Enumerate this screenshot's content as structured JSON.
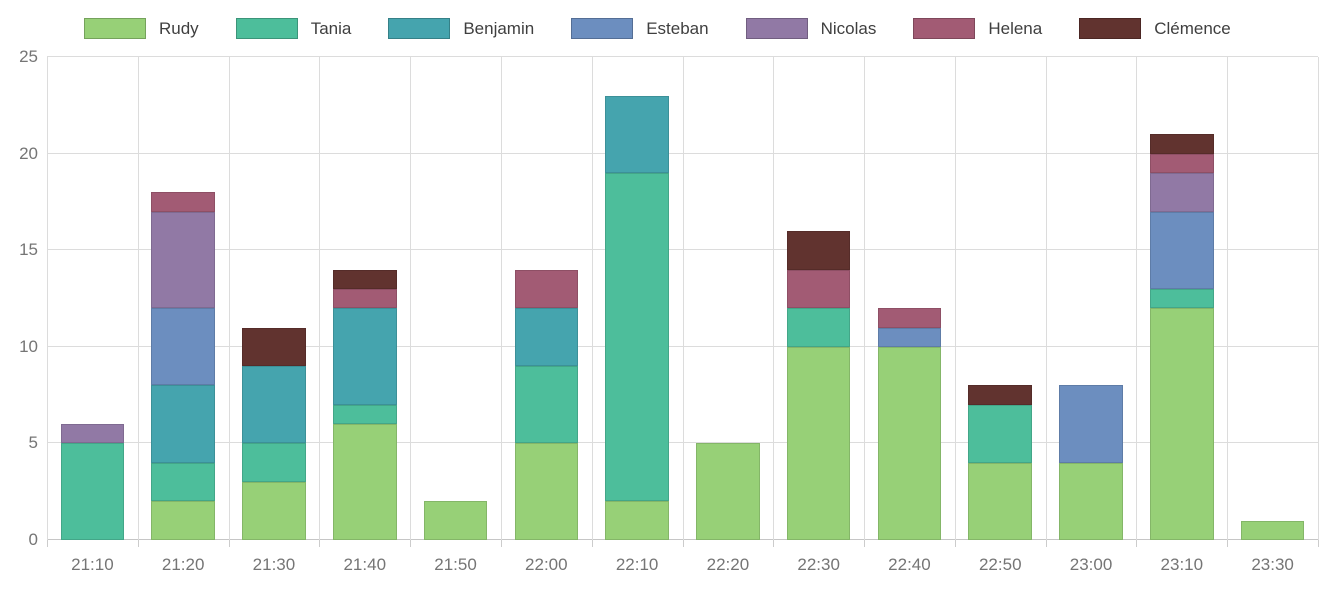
{
  "chart_data": {
    "type": "bar",
    "stacked": true,
    "title": "",
    "xlabel": "",
    "ylabel": "",
    "legend_position": "top",
    "grid": true,
    "ylim": [
      0,
      25
    ],
    "yticks": [
      0,
      5,
      10,
      15,
      20,
      25
    ],
    "categories": [
      "21:10",
      "21:20",
      "21:30",
      "21:40",
      "21:50",
      "22:00",
      "22:10",
      "22:20",
      "22:30",
      "22:40",
      "22:50",
      "23:00",
      "23:10",
      "23:30"
    ],
    "series": [
      {
        "name": "Rudy",
        "color": "#97d077",
        "values": [
          0,
          2,
          3,
          6,
          2,
          5,
          2,
          5,
          10,
          10,
          4,
          4,
          12,
          1
        ]
      },
      {
        "name": "Tania",
        "color": "#4dbe9b",
        "values": [
          5,
          2,
          2,
          1,
          0,
          4,
          17,
          0,
          2,
          0,
          3,
          0,
          1,
          0
        ]
      },
      {
        "name": "Benjamin",
        "color": "#45a4ae",
        "values": [
          0,
          4,
          4,
          5,
          0,
          3,
          4,
          0,
          0,
          0,
          0,
          0,
          0,
          0
        ]
      },
      {
        "name": "Esteban",
        "color": "#6c8ebf",
        "values": [
          0,
          4,
          0,
          0,
          0,
          0,
          0,
          0,
          0,
          1,
          0,
          4,
          4,
          0
        ]
      },
      {
        "name": "Nicolas",
        "color": "#9179a5",
        "values": [
          1,
          5,
          0,
          0,
          0,
          0,
          0,
          0,
          0,
          0,
          0,
          0,
          2,
          0
        ]
      },
      {
        "name": "Helena",
        "color": "#a25b74",
        "values": [
          0,
          1,
          0,
          1,
          0,
          2,
          0,
          0,
          2,
          1,
          0,
          0,
          1,
          0
        ]
      },
      {
        "name": "Clémence",
        "color": "#61332f",
        "values": [
          0,
          0,
          2,
          1,
          0,
          0,
          0,
          0,
          2,
          0,
          1,
          0,
          1,
          0
        ]
      }
    ],
    "bar_totals": [
      6,
      18,
      11,
      14,
      2,
      14,
      23,
      5,
      16,
      12,
      8,
      8,
      21,
      1
    ]
  },
  "style": {
    "gridline_color": "#dcdcdc",
    "axis_line_color": "#c6c6c6",
    "tick_label_color": "#757575",
    "legend_label_color": "#3f3f3f",
    "background_color": "#ffffff"
  }
}
